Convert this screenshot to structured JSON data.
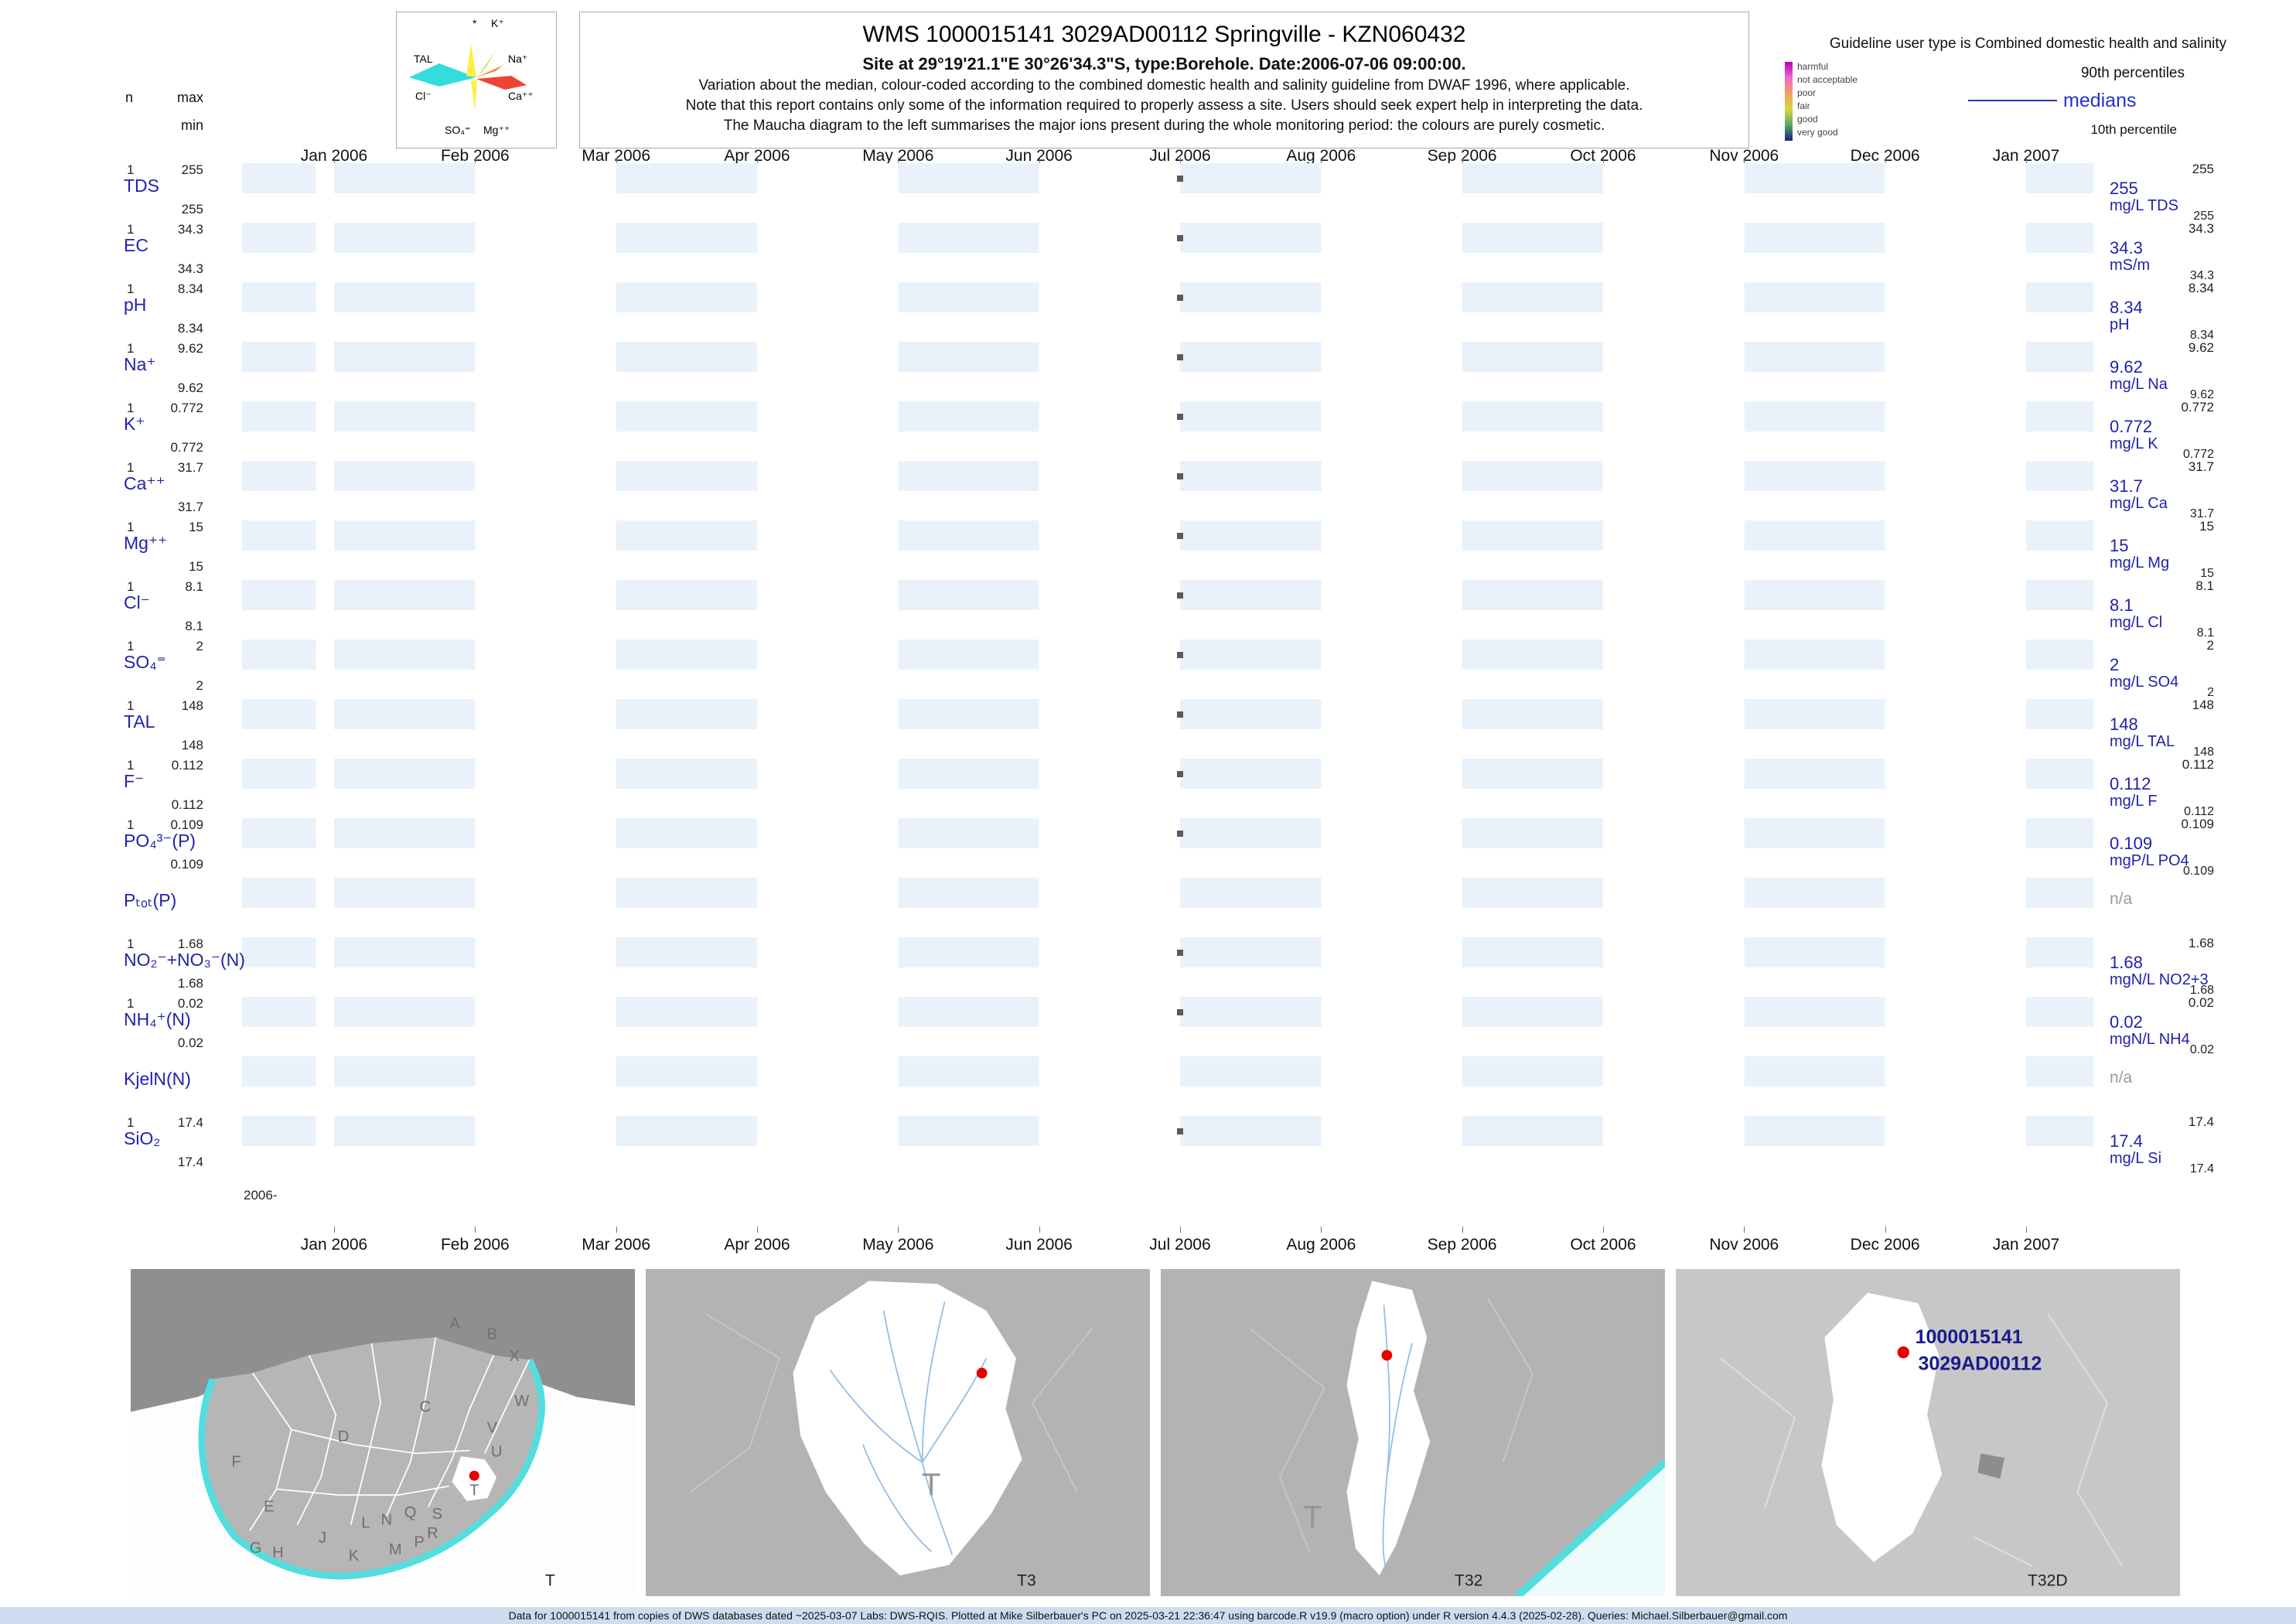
{
  "header": {
    "title": "WMS 1000015141 3029AD00112 Springville - KZN060432",
    "subtitle": "Site at 29°19'21.1\"E 30°26'34.3\"S, type:Borehole. Date:2006-07-06 09:00:00.",
    "notes": [
      "Variation about the median,  colour-coded according to the combined domestic health and salinity guideline from DWAF 1996, where applicable.",
      "Note that this report contains only some of the information required to properly assess a site. Users should seek expert help in interpreting the data.",
      "The Maucha diagram to the left summarises the major ions present during the whole monitoring period: the colours are purely cosmetic."
    ]
  },
  "maucha": {
    "labels": {
      "star": "*",
      "k": "K⁺",
      "na": "Na⁺",
      "tal": "TAL",
      "cl": "Cl⁻",
      "ca": "Ca⁺⁺",
      "so4": "SO₄⁼",
      "mg": "Mg⁺⁺"
    }
  },
  "legend": {
    "title": "Guideline user type is Combined domestic health and salinity",
    "classes": [
      {
        "label": "harmful",
        "color": "#bb00bb"
      },
      {
        "label": "not acceptable",
        "color": "#ee66cc"
      },
      {
        "label": "poor",
        "color": "#f2a25c"
      },
      {
        "label": "fair",
        "color": "#d8d840"
      },
      {
        "label": "good",
        "color": "#55aa66"
      },
      {
        "label": "very good",
        "color": "#1c1c80"
      }
    ],
    "p90_label": "90th percentiles",
    "median_label": "medians",
    "p10_label": "10th percentile"
  },
  "axis": {
    "n_header": "n",
    "max_header": "max",
    "min_header": "min",
    "year_label": "2006-",
    "months": [
      "Jan 2006",
      "Feb 2006",
      "Mar 2006",
      "Apr 2006",
      "May 2006",
      "Jun 2006",
      "Jul 2006",
      "Aug 2006",
      "Sep 2006",
      "Oct 2006",
      "Nov 2006",
      "Dec 2006",
      "Jan 2007"
    ]
  },
  "parameters": [
    {
      "key": "tds",
      "label": "TDS",
      "n": "1",
      "max": "255",
      "min": "255",
      "p90": "255",
      "median": "255",
      "p10": "255",
      "unit": "mg/L TDS",
      "has_data": true
    },
    {
      "key": "ec",
      "label": "EC",
      "n": "1",
      "max": "34.3",
      "min": "34.3",
      "p90": "34.3",
      "median": "34.3",
      "p10": "34.3",
      "unit": "mS/m",
      "has_data": true
    },
    {
      "key": "ph",
      "label": "pH",
      "n": "1",
      "max": "8.34",
      "min": "8.34",
      "p90": "8.34",
      "median": "8.34",
      "p10": "8.34",
      "unit": "pH",
      "has_data": true
    },
    {
      "key": "na",
      "label": "Na⁺",
      "n": "1",
      "max": "9.62",
      "min": "9.62",
      "p90": "9.62",
      "median": "9.62",
      "p10": "9.62",
      "unit": "mg/L Na",
      "has_data": true
    },
    {
      "key": "k",
      "label": "K⁺",
      "n": "1",
      "max": "0.772",
      "min": "0.772",
      "p90": "0.772",
      "median": "0.772",
      "p10": "0.772",
      "unit": "mg/L K",
      "has_data": true
    },
    {
      "key": "ca",
      "label": "Ca⁺⁺",
      "n": "1",
      "max": "31.7",
      "min": "31.7",
      "p90": "31.7",
      "median": "31.7",
      "p10": "31.7",
      "unit": "mg/L Ca",
      "has_data": true
    },
    {
      "key": "mg",
      "label": "Mg⁺⁺",
      "n": "1",
      "max": "15",
      "min": "15",
      "p90": "15",
      "median": "15",
      "p10": "15",
      "unit": "mg/L Mg",
      "has_data": true
    },
    {
      "key": "cl",
      "label": "Cl⁻",
      "n": "1",
      "max": "8.1",
      "min": "8.1",
      "p90": "8.1",
      "median": "8.1",
      "p10": "8.1",
      "unit": "mg/L Cl",
      "has_data": true
    },
    {
      "key": "so4",
      "label": "SO₄⁼",
      "n": "1",
      "max": "2",
      "min": "2",
      "p90": "2",
      "median": "2",
      "p10": "2",
      "unit": "mg/L SO4",
      "has_data": true
    },
    {
      "key": "tal",
      "label": "TAL",
      "n": "1",
      "max": "148",
      "min": "148",
      "p90": "148",
      "median": "148",
      "p10": "148",
      "unit": "mg/L TAL",
      "has_data": true
    },
    {
      "key": "f",
      "label": "F⁻",
      "n": "1",
      "max": "0.112",
      "min": "0.112",
      "p90": "0.112",
      "median": "0.112",
      "p10": "0.112",
      "unit": "mg/L F",
      "has_data": true
    },
    {
      "key": "po4",
      "label": "PO₄³⁻(P)",
      "n": "1",
      "max": "0.109",
      "min": "0.109",
      "p90": "0.109",
      "median": "0.109",
      "p10": "0.109",
      "unit": "mgP/L PO4",
      "has_data": true
    },
    {
      "key": "ptot",
      "label": "Pₜₒₜ(P)",
      "na": "n/a",
      "has_data": false
    },
    {
      "key": "no2no3",
      "label": "NO₂⁻+NO₃⁻(N)",
      "n": "1",
      "max": "1.68",
      "min": "1.68",
      "p90": "1.68",
      "median": "1.68",
      "p10": "1.68",
      "unit": "mgN/L NO2+3",
      "has_data": true
    },
    {
      "key": "nh4",
      "label": "NH₄⁺(N)",
      "n": "1",
      "max": "0.02",
      "min": "0.02",
      "p90": "0.02",
      "median": "0.02",
      "p10": "0.02",
      "unit": "mgN/L NH4",
      "has_data": true
    },
    {
      "key": "kjeln",
      "label": "KjelN(N)",
      "na": "n/a",
      "has_data": false
    },
    {
      "key": "sio2",
      "label": "SiO₂",
      "n": "1",
      "max": "17.4",
      "min": "17.4",
      "p90": "17.4",
      "median": "17.4",
      "p10": "17.4",
      "unit": "mg/L Si",
      "has_data": true
    }
  ],
  "chart_data": {
    "type": "scatter",
    "title": "WMS 1000015141 3029AD00112 Springville - KZN060432",
    "sample_date": "2006-07-06 09:00:00",
    "x_axis": {
      "start": "Jan 2006",
      "end": "Jan 2007",
      "ticks": [
        "Jan 2006",
        "Feb 2006",
        "Mar 2006",
        "Apr 2006",
        "May 2006",
        "Jun 2006",
        "Jul 2006",
        "Aug 2006",
        "Sep 2006",
        "Oct 2006",
        "Nov 2006",
        "Dec 2006",
        "Jan 2007"
      ]
    },
    "series": [
      {
        "name": "TDS",
        "unit": "mg/L",
        "n": 1,
        "min": 255,
        "max": 255,
        "median": 255,
        "p90": 255,
        "p10": 255,
        "points": [
          {
            "date": "2006-07-06",
            "value": 255
          }
        ]
      },
      {
        "name": "EC",
        "unit": "mS/m",
        "n": 1,
        "min": 34.3,
        "max": 34.3,
        "median": 34.3,
        "p90": 34.3,
        "p10": 34.3,
        "points": [
          {
            "date": "2006-07-06",
            "value": 34.3
          }
        ]
      },
      {
        "name": "pH",
        "unit": "pH",
        "n": 1,
        "min": 8.34,
        "max": 8.34,
        "median": 8.34,
        "p90": 8.34,
        "p10": 8.34,
        "points": [
          {
            "date": "2006-07-06",
            "value": 8.34
          }
        ]
      },
      {
        "name": "Na",
        "unit": "mg/L",
        "n": 1,
        "min": 9.62,
        "max": 9.62,
        "median": 9.62,
        "p90": 9.62,
        "p10": 9.62,
        "points": [
          {
            "date": "2006-07-06",
            "value": 9.62
          }
        ]
      },
      {
        "name": "K",
        "unit": "mg/L",
        "n": 1,
        "min": 0.772,
        "max": 0.772,
        "median": 0.772,
        "p90": 0.772,
        "p10": 0.772,
        "points": [
          {
            "date": "2006-07-06",
            "value": 0.772
          }
        ]
      },
      {
        "name": "Ca",
        "unit": "mg/L",
        "n": 1,
        "min": 31.7,
        "max": 31.7,
        "median": 31.7,
        "p90": 31.7,
        "p10": 31.7,
        "points": [
          {
            "date": "2006-07-06",
            "value": 31.7
          }
        ]
      },
      {
        "name": "Mg",
        "unit": "mg/L",
        "n": 1,
        "min": 15,
        "max": 15,
        "median": 15,
        "p90": 15,
        "p10": 15,
        "points": [
          {
            "date": "2006-07-06",
            "value": 15
          }
        ]
      },
      {
        "name": "Cl",
        "unit": "mg/L",
        "n": 1,
        "min": 8.1,
        "max": 8.1,
        "median": 8.1,
        "p90": 8.1,
        "p10": 8.1,
        "points": [
          {
            "date": "2006-07-06",
            "value": 8.1
          }
        ]
      },
      {
        "name": "SO4",
        "unit": "mg/L",
        "n": 1,
        "min": 2,
        "max": 2,
        "median": 2,
        "p90": 2,
        "p10": 2,
        "points": [
          {
            "date": "2006-07-06",
            "value": 2
          }
        ]
      },
      {
        "name": "TAL",
        "unit": "mg/L",
        "n": 1,
        "min": 148,
        "max": 148,
        "median": 148,
        "p90": 148,
        "p10": 148,
        "points": [
          {
            "date": "2006-07-06",
            "value": 148
          }
        ]
      },
      {
        "name": "F",
        "unit": "mg/L",
        "n": 1,
        "min": 0.112,
        "max": 0.112,
        "median": 0.112,
        "p90": 0.112,
        "p10": 0.112,
        "points": [
          {
            "date": "2006-07-06",
            "value": 0.112
          }
        ]
      },
      {
        "name": "PO4(P)",
        "unit": "mgP/L",
        "n": 1,
        "min": 0.109,
        "max": 0.109,
        "median": 0.109,
        "p90": 0.109,
        "p10": 0.109,
        "points": [
          {
            "date": "2006-07-06",
            "value": 0.109
          }
        ]
      },
      {
        "name": "Ptot(P)",
        "unit": null,
        "n": 0,
        "points": [],
        "note": "n/a"
      },
      {
        "name": "NO2+NO3(N)",
        "unit": "mgN/L",
        "n": 1,
        "min": 1.68,
        "max": 1.68,
        "median": 1.68,
        "p90": 1.68,
        "p10": 1.68,
        "points": [
          {
            "date": "2006-07-06",
            "value": 1.68
          }
        ]
      },
      {
        "name": "NH4(N)",
        "unit": "mgN/L",
        "n": 1,
        "min": 0.02,
        "max": 0.02,
        "median": 0.02,
        "p90": 0.02,
        "p10": 0.02,
        "points": [
          {
            "date": "2006-07-06",
            "value": 0.02
          }
        ]
      },
      {
        "name": "KjelN(N)",
        "unit": null,
        "n": 0,
        "points": [],
        "note": "n/a"
      },
      {
        "name": "SiO2",
        "unit": "mg/L",
        "n": 1,
        "min": 17.4,
        "max": 17.4,
        "median": 17.4,
        "p90": 17.4,
        "p10": 17.4,
        "points": [
          {
            "date": "2006-07-06",
            "value": 17.4
          }
        ]
      }
    ]
  },
  "maps": {
    "panel1": {
      "label": "T",
      "letters": [
        "A",
        "B",
        "C",
        "D",
        "E",
        "F",
        "G",
        "H",
        "J",
        "K",
        "L",
        "M",
        "N",
        "P",
        "Q",
        "R",
        "S",
        "T",
        "U",
        "V",
        "W",
        "X"
      ]
    },
    "panel2": {
      "big_label": "T",
      "label": "T3"
    },
    "panel3": {
      "big_label": "T",
      "label": "T32"
    },
    "panel4": {
      "label": "T32D",
      "site_ids": [
        "1000015141",
        "3029AD00112"
      ]
    }
  },
  "footer": "Data for 1000015141 from copies of DWS databases dated ~2025-03-07 Labs: DWS-RQIS. Plotted at Mike Silberbauer's PC on 2025-03-21 22:36:47 using barcode.R v19.9 (macro option) under R version 4.4.3 (2025-02-28). Queries: Michael.Silberbauer@gmail.com"
}
